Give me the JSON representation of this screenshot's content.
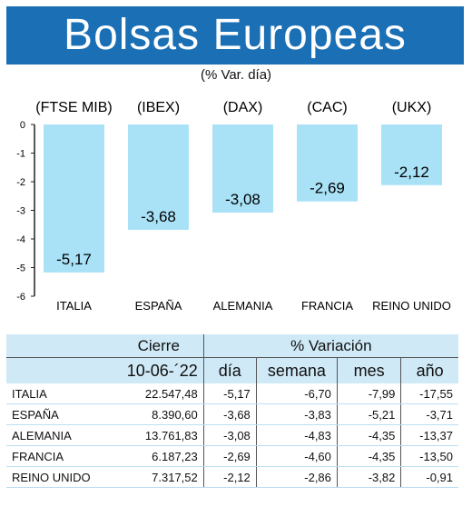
{
  "header": {
    "title": "Bolsas Europeas",
    "subtitle": "(% Var. día)"
  },
  "colors": {
    "banner": "#1a6fb5",
    "bar": "#a9e2f7",
    "table_header": "#cfe9f6"
  },
  "chart_data": {
    "type": "bar",
    "index_labels": [
      "(FTSE MIB)",
      "(IBEX)",
      "(DAX)",
      "(CAC)",
      "(UKX)"
    ],
    "categories": [
      "ITALIA",
      "ESPAÑA",
      "ALEMANIA",
      "FRANCIA",
      "REINO UNIDO"
    ],
    "values": [
      -5.17,
      -3.68,
      -3.08,
      -2.69,
      -2.12
    ],
    "value_labels": [
      "-5,17",
      "-3,68",
      "-3,08",
      "-2,69",
      "-2,12"
    ],
    "ylim": [
      -6,
      0
    ],
    "yticks": [
      0,
      -1,
      -2,
      -3,
      -4,
      -5,
      -6
    ],
    "ytick_labels": [
      "0",
      "-1",
      "-2",
      "-3",
      "-4",
      "-5",
      "-6"
    ]
  },
  "table": {
    "group_headers": [
      "Cierre",
      "% Variación"
    ],
    "date_header": "10-06-´22",
    "columns": [
      "día",
      "semana",
      "mes",
      "año"
    ],
    "rows": [
      {
        "name": "ITALIA",
        "cierre": "22.547,48",
        "dia": "-5,17",
        "semana": "-6,70",
        "mes": "-7,99",
        "ano": "-17,55"
      },
      {
        "name": "ESPAÑA",
        "cierre": "8.390,60",
        "dia": "-3,68",
        "semana": "-3,83",
        "mes": "-5,21",
        "ano": "-3,71"
      },
      {
        "name": "ALEMANIA",
        "cierre": "13.761,83",
        "dia": "-3,08",
        "semana": "-4,83",
        "mes": "-4,35",
        "ano": "-13,37"
      },
      {
        "name": "FRANCIA",
        "cierre": "6.187,23",
        "dia": "-2,69",
        "semana": "-4,60",
        "mes": "-4,35",
        "ano": "-13,50"
      },
      {
        "name": "REINO UNIDO",
        "cierre": "7.317,52",
        "dia": "-2,12",
        "semana": "-2,86",
        "mes": "-3,82",
        "ano": "-0,91"
      }
    ]
  }
}
